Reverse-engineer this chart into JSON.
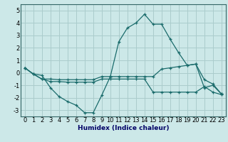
{
  "title": "",
  "xlabel": "Humidex (Indice chaleur)",
  "background_color": "#cce8e8",
  "grid_color": "#aacccc",
  "line_color": "#1a6b6b",
  "xlim": [
    -0.5,
    23.5
  ],
  "ylim": [
    -3.5,
    5.5
  ],
  "yticks": [
    -3,
    -2,
    -1,
    0,
    1,
    2,
    3,
    4,
    5
  ],
  "xticks": [
    0,
    1,
    2,
    3,
    4,
    5,
    6,
    7,
    8,
    9,
    10,
    11,
    12,
    13,
    14,
    15,
    16,
    17,
    18,
    19,
    20,
    21,
    22,
    23
  ],
  "x": [
    0,
    1,
    2,
    3,
    4,
    5,
    6,
    7,
    8,
    9,
    10,
    11,
    12,
    13,
    14,
    15,
    16,
    17,
    18,
    19,
    20,
    21,
    22,
    23
  ],
  "line1": [
    0.4,
    -0.1,
    -0.2,
    -1.2,
    -1.9,
    -2.3,
    -2.6,
    -3.2,
    -3.2,
    -1.8,
    -0.3,
    2.5,
    3.6,
    4.0,
    4.7,
    3.9,
    3.9,
    2.7,
    1.6,
    0.6,
    0.7,
    -1.2,
    -1.0,
    -1.7
  ],
  "line2": [
    0.4,
    -0.1,
    -0.5,
    -0.5,
    -0.55,
    -0.55,
    -0.55,
    -0.55,
    -0.55,
    -0.3,
    -0.3,
    -0.3,
    -0.3,
    -0.3,
    -0.3,
    -0.3,
    0.3,
    0.4,
    0.5,
    0.6,
    0.7,
    -0.55,
    -0.9,
    -1.7
  ],
  "line3": [
    0.4,
    -0.1,
    -0.5,
    -0.7,
    -0.7,
    -0.75,
    -0.75,
    -0.75,
    -0.75,
    -0.5,
    -0.5,
    -0.5,
    -0.5,
    -0.5,
    -0.5,
    -1.55,
    -1.55,
    -1.55,
    -1.55,
    -1.55,
    -1.55,
    -1.1,
    -1.55,
    -1.75
  ],
  "tick_fontsize": 6.0,
  "xlabel_fontsize": 6.5,
  "xlabel_color": "#000066"
}
